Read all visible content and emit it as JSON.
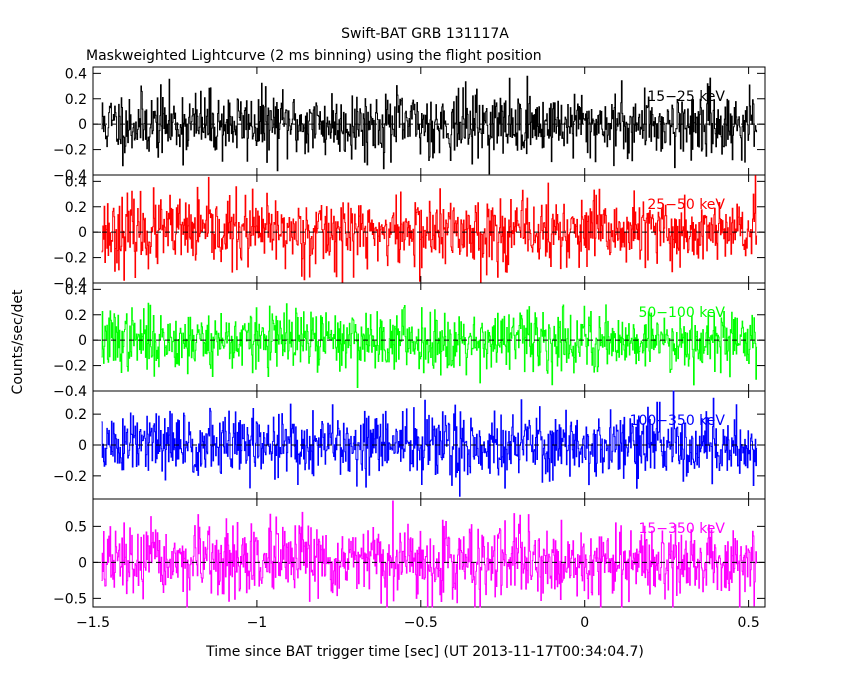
{
  "chart_data": {
    "type": "line",
    "title": "Swift-BAT GRB 131117A",
    "subtitle": "Maskweighted Lightcurve (2 ms binning) using the flight position",
    "xlabel": "Time since BAT trigger time [sec] (UT 2013-11-17T00:34:04.7)",
    "ylabel": "Counts/sec/det",
    "xlim": [
      -1.5,
      0.55
    ],
    "x_ticks": [
      -1.5,
      -1,
      -0.5,
      0,
      0.5
    ],
    "x_tick_labels": [
      "−1.5",
      "−1",
      "−0.5",
      "0",
      "0.5"
    ],
    "bin_width_sec": 0.002,
    "x_start": -1.474,
    "x_end": 0.526,
    "panels": [
      {
        "name": "15-25 keV",
        "label": "15−25 keV",
        "color": "#000000",
        "ylim": [
          -0.4,
          0.45
        ],
        "y_ticks": [
          -0.4,
          -0.2,
          0,
          0.2,
          0.4
        ],
        "y_tick_labels": [
          "−0.4",
          "−0.2",
          "0",
          "0.2",
          "0.4"
        ],
        "noise_amplitude": 0.13,
        "seed": 11
      },
      {
        "name": "25-50 keV",
        "label": "25−50 keV",
        "color": "#ff0000",
        "ylim": [
          -0.4,
          0.45
        ],
        "y_ticks": [
          -0.4,
          -0.2,
          0,
          0.2,
          0.4
        ],
        "y_tick_labels": [
          "−0.4",
          "−0.2",
          "0",
          "0.2",
          "0.4"
        ],
        "noise_amplitude": 0.14,
        "seed": 23
      },
      {
        "name": "50-100 keV",
        "label": "50−100 keV",
        "color": "#00ff00",
        "ylim": [
          -0.4,
          0.45
        ],
        "y_ticks": [
          -0.4,
          -0.2,
          0,
          0.2,
          0.4
        ],
        "y_tick_labels": [
          "−0.4",
          "−0.2",
          "0",
          "0.2",
          "0.4"
        ],
        "noise_amplitude": 0.12,
        "seed": 37
      },
      {
        "name": "100-350 keV",
        "label": "100−350 keV",
        "color": "#0000ff",
        "ylim": [
          -0.35,
          0.35
        ],
        "y_ticks": [
          -0.2,
          0,
          0.2
        ],
        "y_tick_labels": [
          "−0.2",
          "0",
          "0.2"
        ],
        "noise_amplitude": 0.11,
        "seed": 51
      },
      {
        "name": "15-350 keV",
        "label": "15−350 keV",
        "color": "#ff00ff",
        "ylim": [
          -0.62,
          0.88
        ],
        "y_ticks": [
          -0.5,
          0,
          0.5
        ],
        "y_tick_labels": [
          "−0.5",
          "0",
          "0.5"
        ],
        "noise_amplitude": 0.25,
        "seed": 67
      }
    ]
  }
}
